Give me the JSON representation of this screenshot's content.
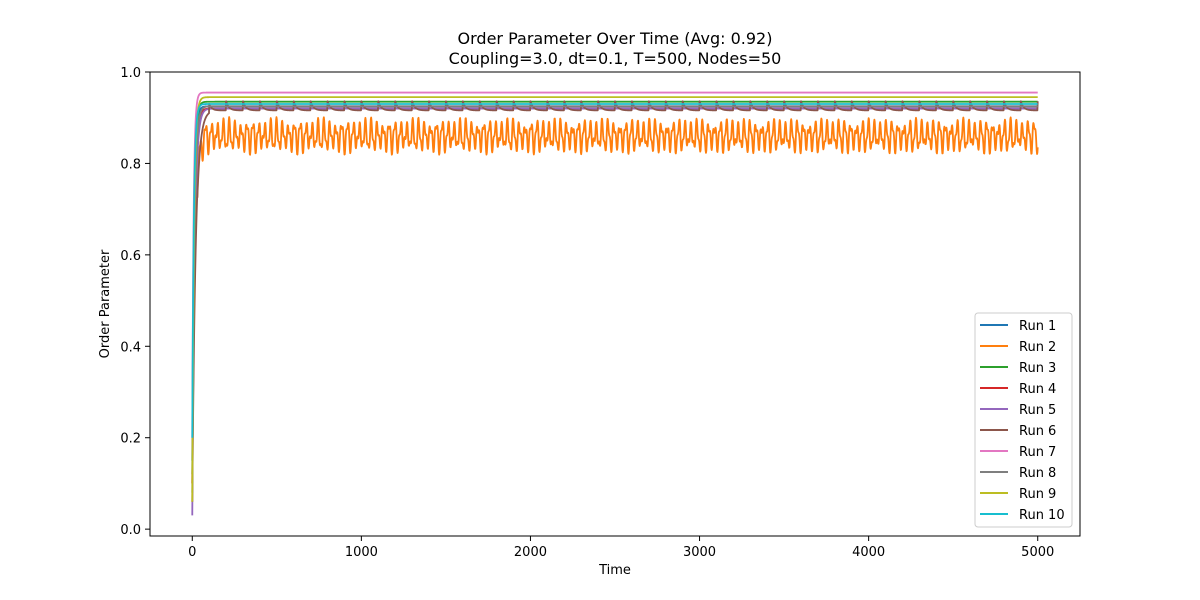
{
  "chart_data": {
    "type": "line",
    "title": "Order Parameter Over Time (Avg: 0.92)",
    "subtitle": "Coupling=3.0, dt=0.1, T=500, Nodes=50",
    "xlabel": "Time",
    "ylabel": "Order Parameter",
    "xlim": [
      -250,
      5250
    ],
    "ylim": [
      -0.015,
      1.0
    ],
    "xticks": [
      0,
      1000,
      2000,
      3000,
      4000,
      5000
    ],
    "xtick_labels": [
      "0",
      "1000",
      "2000",
      "3000",
      "4000",
      "5000"
    ],
    "yticks": [
      0.0,
      0.2,
      0.4,
      0.6,
      0.8,
      1.0
    ],
    "ytick_labels": [
      "0.0",
      "0.2",
      "0.4",
      "0.6",
      "0.8",
      "1.0"
    ],
    "grid": false,
    "legend_position": "lower-right",
    "series": [
      {
        "name": "Run 1",
        "color": "#1f77b4",
        "start": 0.15,
        "plateau": 0.925,
        "rise": 10,
        "osc_amp": 0.0,
        "period": 0,
        "pattern": "flat"
      },
      {
        "name": "Run 2",
        "color": "#ff7f0e",
        "start": 0.1,
        "plateau": 0.86,
        "rise": 15,
        "osc_amp": 0.03,
        "period": 35,
        "pattern": "beat"
      },
      {
        "name": "Run 3",
        "color": "#2ca02c",
        "start": 0.12,
        "plateau": 0.935,
        "rise": 10,
        "osc_amp": 0.0,
        "period": 0,
        "pattern": "flat"
      },
      {
        "name": "Run 4",
        "color": "#d62728",
        "start": 0.1,
        "plateau": 0.92,
        "rise": 12,
        "osc_amp": 0.0,
        "period": 0,
        "pattern": "flat"
      },
      {
        "name": "Run 5",
        "color": "#9467bd",
        "start": 0.03,
        "plateau": 0.92,
        "rise": 14,
        "osc_amp": 0.0,
        "period": 0,
        "pattern": "flat"
      },
      {
        "name": "Run 6",
        "color": "#8c564b",
        "start": 0.06,
        "plateau": 0.93,
        "rise": 20,
        "osc_amp": 0.02,
        "period": 100,
        "pattern": "sawtooth"
      },
      {
        "name": "Run 7",
        "color": "#e377c2",
        "start": 0.2,
        "plateau": 0.955,
        "rise": 8,
        "osc_amp": 0.0,
        "period": 0,
        "pattern": "flat"
      },
      {
        "name": "Run 8",
        "color": "#7f7f7f",
        "start": 0.08,
        "plateau": 0.925,
        "rise": 12,
        "osc_amp": 0.0,
        "period": 0,
        "pattern": "flat"
      },
      {
        "name": "Run 9",
        "color": "#bcbd22",
        "start": 0.06,
        "plateau": 0.945,
        "rise": 10,
        "osc_amp": 0.0,
        "period": 0,
        "pattern": "flat"
      },
      {
        "name": "Run 10",
        "color": "#17becf",
        "start": 0.2,
        "plateau": 0.93,
        "rise": 9,
        "osc_amp": 0.0,
        "period": 0,
        "pattern": "flat"
      }
    ]
  }
}
